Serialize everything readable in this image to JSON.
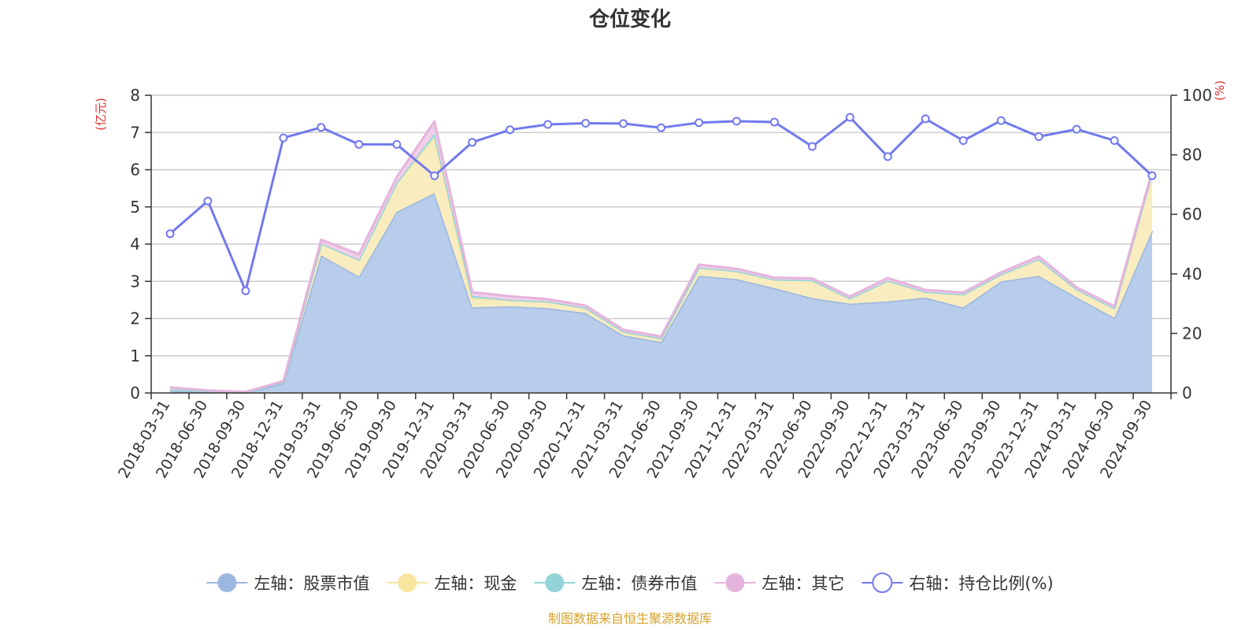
{
  "chart_data": {
    "type": "area",
    "title": "仓位变化",
    "source": "制图数据来自恒生聚源数据库",
    "left_axis": {
      "unit": "(亿元)",
      "ylim": [
        0,
        8
      ],
      "ticks": [
        0,
        1,
        2,
        3,
        4,
        5,
        6,
        7,
        8
      ]
    },
    "right_axis": {
      "unit": "(%)",
      "ylim": [
        0,
        100
      ],
      "ticks": [
        0,
        20,
        40,
        60,
        80,
        100
      ]
    },
    "categories": [
      "2018-03-31",
      "2018-06-30",
      "2018-09-30",
      "2018-12-31",
      "2019-03-31",
      "2019-06-30",
      "2019-09-30",
      "2019-12-31",
      "2020-03-31",
      "2020-06-30",
      "2020-09-30",
      "2020-12-31",
      "2021-03-31",
      "2021-06-30",
      "2021-09-30",
      "2021-12-31",
      "2022-03-31",
      "2022-06-30",
      "2022-09-30",
      "2022-12-31",
      "2023-03-31",
      "2023-06-30",
      "2023-09-30",
      "2023-12-31",
      "2024-03-31",
      "2024-06-30",
      "2024-09-30"
    ],
    "series": [
      {
        "name": "左轴：股票市值",
        "axis": "left",
        "color": "#9bb7e0",
        "fill": "#b8cceb",
        "values": [
          0.06,
          0.03,
          0.01,
          0.26,
          3.7,
          3.13,
          4.87,
          5.37,
          2.3,
          2.33,
          2.28,
          2.15,
          1.55,
          1.37,
          3.15,
          3.06,
          2.82,
          2.55,
          2.4,
          2.46,
          2.56,
          2.3,
          3.0,
          3.15,
          2.57,
          2.02,
          4.36
        ]
      },
      {
        "name": "左轴：现金",
        "axis": "left",
        "color": "#f7e5a0",
        "fill": "#f9ecbf",
        "values": [
          0.04,
          0.02,
          0.01,
          0.04,
          0.32,
          0.45,
          0.78,
          1.5,
          0.24,
          0.17,
          0.18,
          0.14,
          0.1,
          0.1,
          0.22,
          0.22,
          0.23,
          0.48,
          0.14,
          0.56,
          0.16,
          0.35,
          0.19,
          0.45,
          0.22,
          0.26,
          1.55
        ]
      },
      {
        "name": "左轴：债券市值",
        "axis": "left",
        "color": "#94d4d6",
        "fill": "#b9e3e4",
        "values": [
          0,
          0,
          0,
          0,
          0,
          0,
          0,
          0.1,
          0.07,
          0.0,
          0,
          0,
          0,
          0,
          0,
          0,
          0,
          0,
          0,
          0,
          0,
          0,
          0,
          0,
          0,
          0,
          0
        ]
      },
      {
        "name": "左轴：其它",
        "axis": "left",
        "color": "#e5b4dc",
        "fill": "#f0cfe9",
        "values": [
          0.05,
          0.02,
          0.01,
          0.02,
          0.1,
          0.15,
          0.15,
          0.33,
          0.1,
          0.1,
          0.06,
          0.06,
          0.05,
          0.05,
          0.08,
          0.06,
          0.05,
          0.05,
          0.05,
          0.07,
          0.05,
          0.05,
          0.05,
          0.07,
          0.05,
          0.05,
          0.05
        ]
      },
      {
        "name": "右轴：持仓比例(%)",
        "axis": "right",
        "color": "#7279ee",
        "values": [
          53.5,
          64.5,
          34.3,
          85.7,
          89.2,
          83.5,
          83.5,
          73.0,
          84.2,
          88.4,
          90.2,
          90.6,
          90.5,
          89.1,
          90.8,
          91.3,
          91.0,
          82.8,
          92.6,
          79.4,
          92.1,
          84.8,
          91.5,
          86.1,
          88.6,
          84.8,
          73.0
        ]
      }
    ]
  }
}
